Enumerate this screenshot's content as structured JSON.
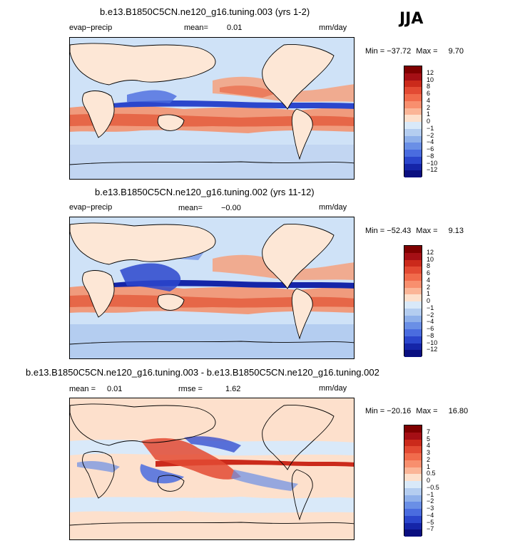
{
  "season": "JJA",
  "panels": [
    {
      "title": "b.e13.B1850C5CN.ne120_g16.tuning.003 (yrs 1-2)",
      "left_label": "evap−precip",
      "mean_label": "mean=",
      "mean_value": "0.01",
      "units": "mm/day",
      "min_label": "Min =",
      "min_value": "−37.72",
      "max_label": "Max =",
      "max_value": "9.70",
      "colorbar_ticks": [
        "12",
        "10",
        "8",
        "6",
        "4",
        "2",
        "1",
        "0",
        "−1",
        "−2",
        "−4",
        "−6",
        "−8",
        "−10",
        "−12"
      ]
    },
    {
      "title": "b.e13.B1850C5CN.ne120_g16.tuning.002 (yrs 11-12)",
      "left_label": "evap−precip",
      "mean_label": "mean=",
      "mean_value": "−0.00",
      "units": "mm/day",
      "min_label": "Min =",
      "min_value": "−52.43",
      "max_label": "Max =",
      "max_value": "9.13",
      "colorbar_ticks": [
        "12",
        "10",
        "8",
        "6",
        "4",
        "2",
        "1",
        "0",
        "−1",
        "−2",
        "−4",
        "−6",
        "−8",
        "−10",
        "−12"
      ]
    },
    {
      "title": "b.e13.B1850C5CN.ne120_g16.tuning.003 - b.e13.B1850C5CN.ne120_g16.tuning.002",
      "left_label": "mean =",
      "mean_value_left": "0.01",
      "mean_label": "rmse =",
      "mean_value": "1.62",
      "units": "mm/day",
      "min_label": "Min =",
      "min_value": "−20.16",
      "max_label": "Max =",
      "max_value": "16.80",
      "colorbar_ticks": [
        "7",
        "5",
        "4",
        "3",
        "2",
        "1",
        "0.5",
        "0",
        "−0.5",
        "−1",
        "−2",
        "−3",
        "−4",
        "−5",
        "−7"
      ]
    }
  ],
  "colors": {
    "colorbar": [
      "#7f0000",
      "#a50f15",
      "#cb2a1b",
      "#e34a33",
      "#f16b4c",
      "#f88f6e",
      "#fbb597",
      "#fde0cc",
      "#d9e9f9",
      "#b4cdf0",
      "#8fb0ea",
      "#6a8fe6",
      "#4a6cdf",
      "#2b46cc",
      "#1525a8",
      "#0a0f80"
    ],
    "ocean_base": "#cfe2f7"
  }
}
